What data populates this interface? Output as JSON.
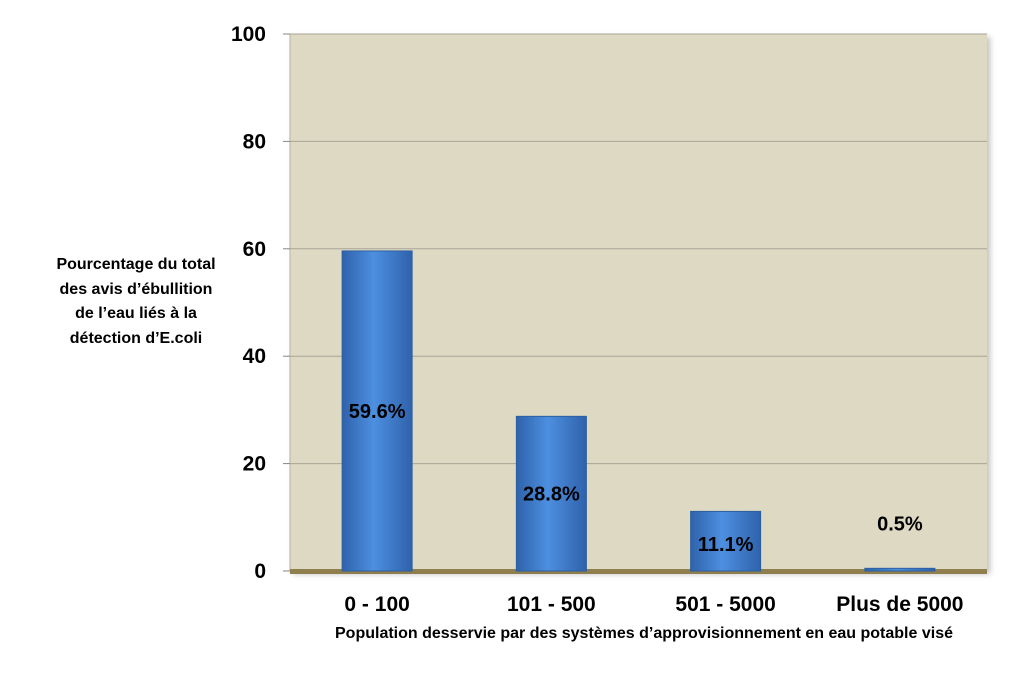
{
  "chart_data": {
    "type": "bar",
    "title": "",
    "categories": [
      "0 - 100",
      "101 - 500",
      "501 - 5000",
      "Plus de 5000"
    ],
    "values": [
      59.6,
      28.8,
      11.1,
      0.5
    ],
    "data_labels": [
      "59.6%",
      "28.8%",
      "11.1%",
      "0.5%"
    ],
    "xlabel": "Population desservie par des systèmes d’approvisionnement en eau potable visé",
    "ylabel_lines": [
      "Pourcentage du total",
      "des avis d’ébullition",
      "de l’eau liés à la",
      "détection d’E.coli"
    ],
    "ylim": [
      0,
      100
    ],
    "yticks": [
      0,
      20,
      40,
      60,
      80,
      100
    ],
    "grid": true,
    "legend": "none",
    "colors": {
      "plot_background": "#ded9c3",
      "bar_fill": "#3f7fd0",
      "bar_edge": "#2c5fa0",
      "gridline": "#a9a597",
      "floor": "#8f7f4f"
    }
  }
}
